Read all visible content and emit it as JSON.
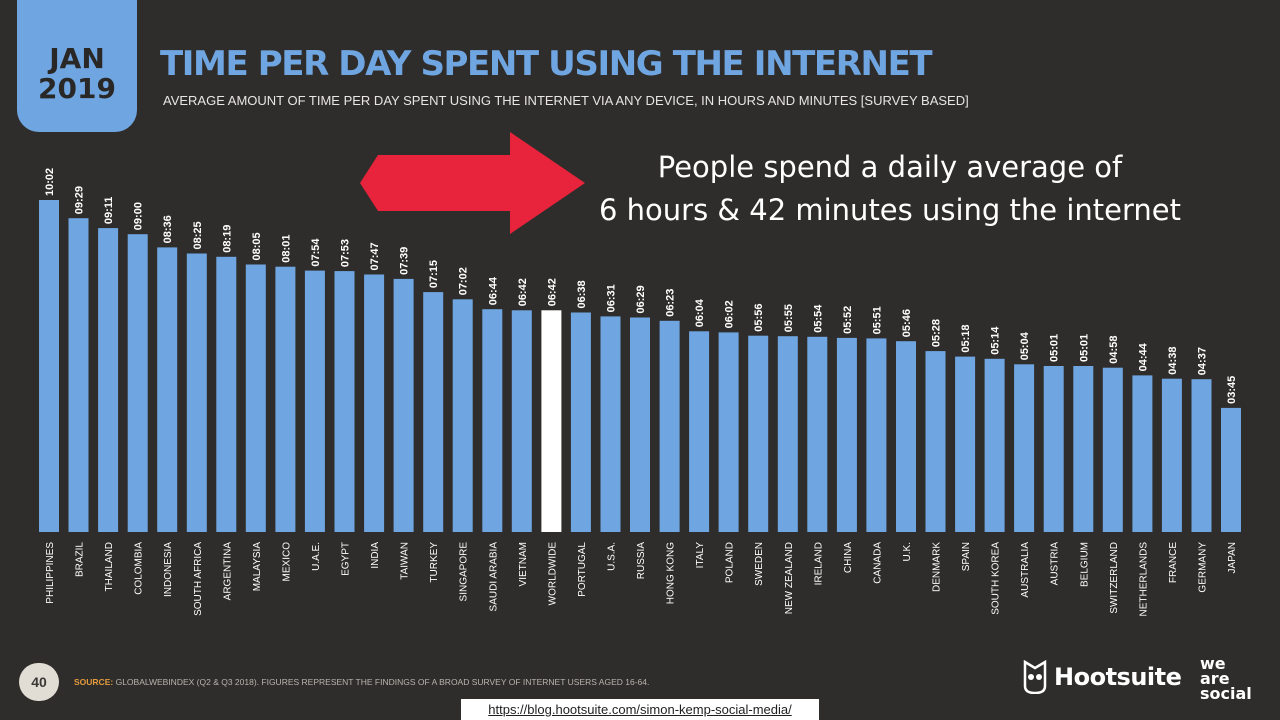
{
  "badge": {
    "month": "JAN",
    "year": "2019"
  },
  "header": {
    "title": "TIME PER DAY SPENT USING THE INTERNET",
    "subtitle": "AVERAGE AMOUNT OF TIME PER DAY SPENT USING THE INTERNET VIA ANY DEVICE, IN HOURS AND MINUTES [SURVEY BASED]"
  },
  "callout": {
    "line1": "People spend a daily average of",
    "line2": "6 hours & 42 minutes using the internet",
    "arrow_color": "#e8233c"
  },
  "chart_data": {
    "type": "bar",
    "title": "TIME PER DAY SPENT USING THE INTERNET",
    "bar_color": "#6fa6e2",
    "highlight_color": "#ffffff",
    "highlight_category": "WORLDWIDE",
    "categories": [
      "PHILIPPINES",
      "BRAZIL",
      "THAILAND",
      "COLOMBIA",
      "INDONESIA",
      "SOUTH AFRICA",
      "ARGENTINA",
      "MALAYSIA",
      "MEXICO",
      "U.A.E.",
      "EGYPT",
      "INDIA",
      "TAIWAN",
      "TURKEY",
      "SINGAPORE",
      "SAUDI ARABIA",
      "VIETNAM",
      "WORLDWIDE",
      "PORTUGAL",
      "U.S.A.",
      "RUSSIA",
      "HONG KONG",
      "ITALY",
      "POLAND",
      "SWEDEN",
      "NEW ZEALAND",
      "IRELAND",
      "CHINA",
      "CANADA",
      "U.K.",
      "DENMARK",
      "SPAIN",
      "SOUTH KOREA",
      "AUSTRALIA",
      "AUSTRIA",
      "BELGIUM",
      "SWITZERLAND",
      "NETHERLANDS",
      "FRANCE",
      "GERMANY",
      "JAPAN"
    ],
    "labels": [
      "10:02",
      "09:29",
      "09:11",
      "09:00",
      "08:36",
      "08:25",
      "08:19",
      "08:05",
      "08:01",
      "07:54",
      "07:53",
      "07:47",
      "07:39",
      "07:15",
      "07:02",
      "06:44",
      "06:42",
      "06:42",
      "06:38",
      "06:31",
      "06:29",
      "06:23",
      "06:04",
      "06:02",
      "05:56",
      "05:55",
      "05:54",
      "05:52",
      "05:51",
      "05:46",
      "05:28",
      "05:18",
      "05:14",
      "05:04",
      "05:01",
      "05:01",
      "04:58",
      "04:44",
      "04:38",
      "04:37",
      "03:45"
    ],
    "values_minutes": [
      602,
      569,
      551,
      540,
      516,
      505,
      499,
      485,
      481,
      474,
      473,
      467,
      459,
      435,
      422,
      404,
      402,
      402,
      398,
      391,
      389,
      383,
      364,
      362,
      356,
      355,
      354,
      352,
      351,
      346,
      328,
      318,
      314,
      304,
      301,
      301,
      298,
      284,
      278,
      277,
      225
    ],
    "y_unit": "hours:minutes",
    "ylim_minutes": [
      0,
      602
    ]
  },
  "footer": {
    "page_number": "40",
    "source_label": "SOURCE:",
    "source_text": "GLOBALWEBINDEX (Q2 & Q3 2018). FIGURES REPRESENT THE FINDINGS OF A BROAD SURVEY OF INTERNET USERS AGED 16-64.",
    "hootsuite": "Hootsuite",
    "we_are_social": [
      "we",
      "are",
      "social"
    ]
  },
  "url": "https://blog.hootsuite.com/simon-kemp-social-media/"
}
